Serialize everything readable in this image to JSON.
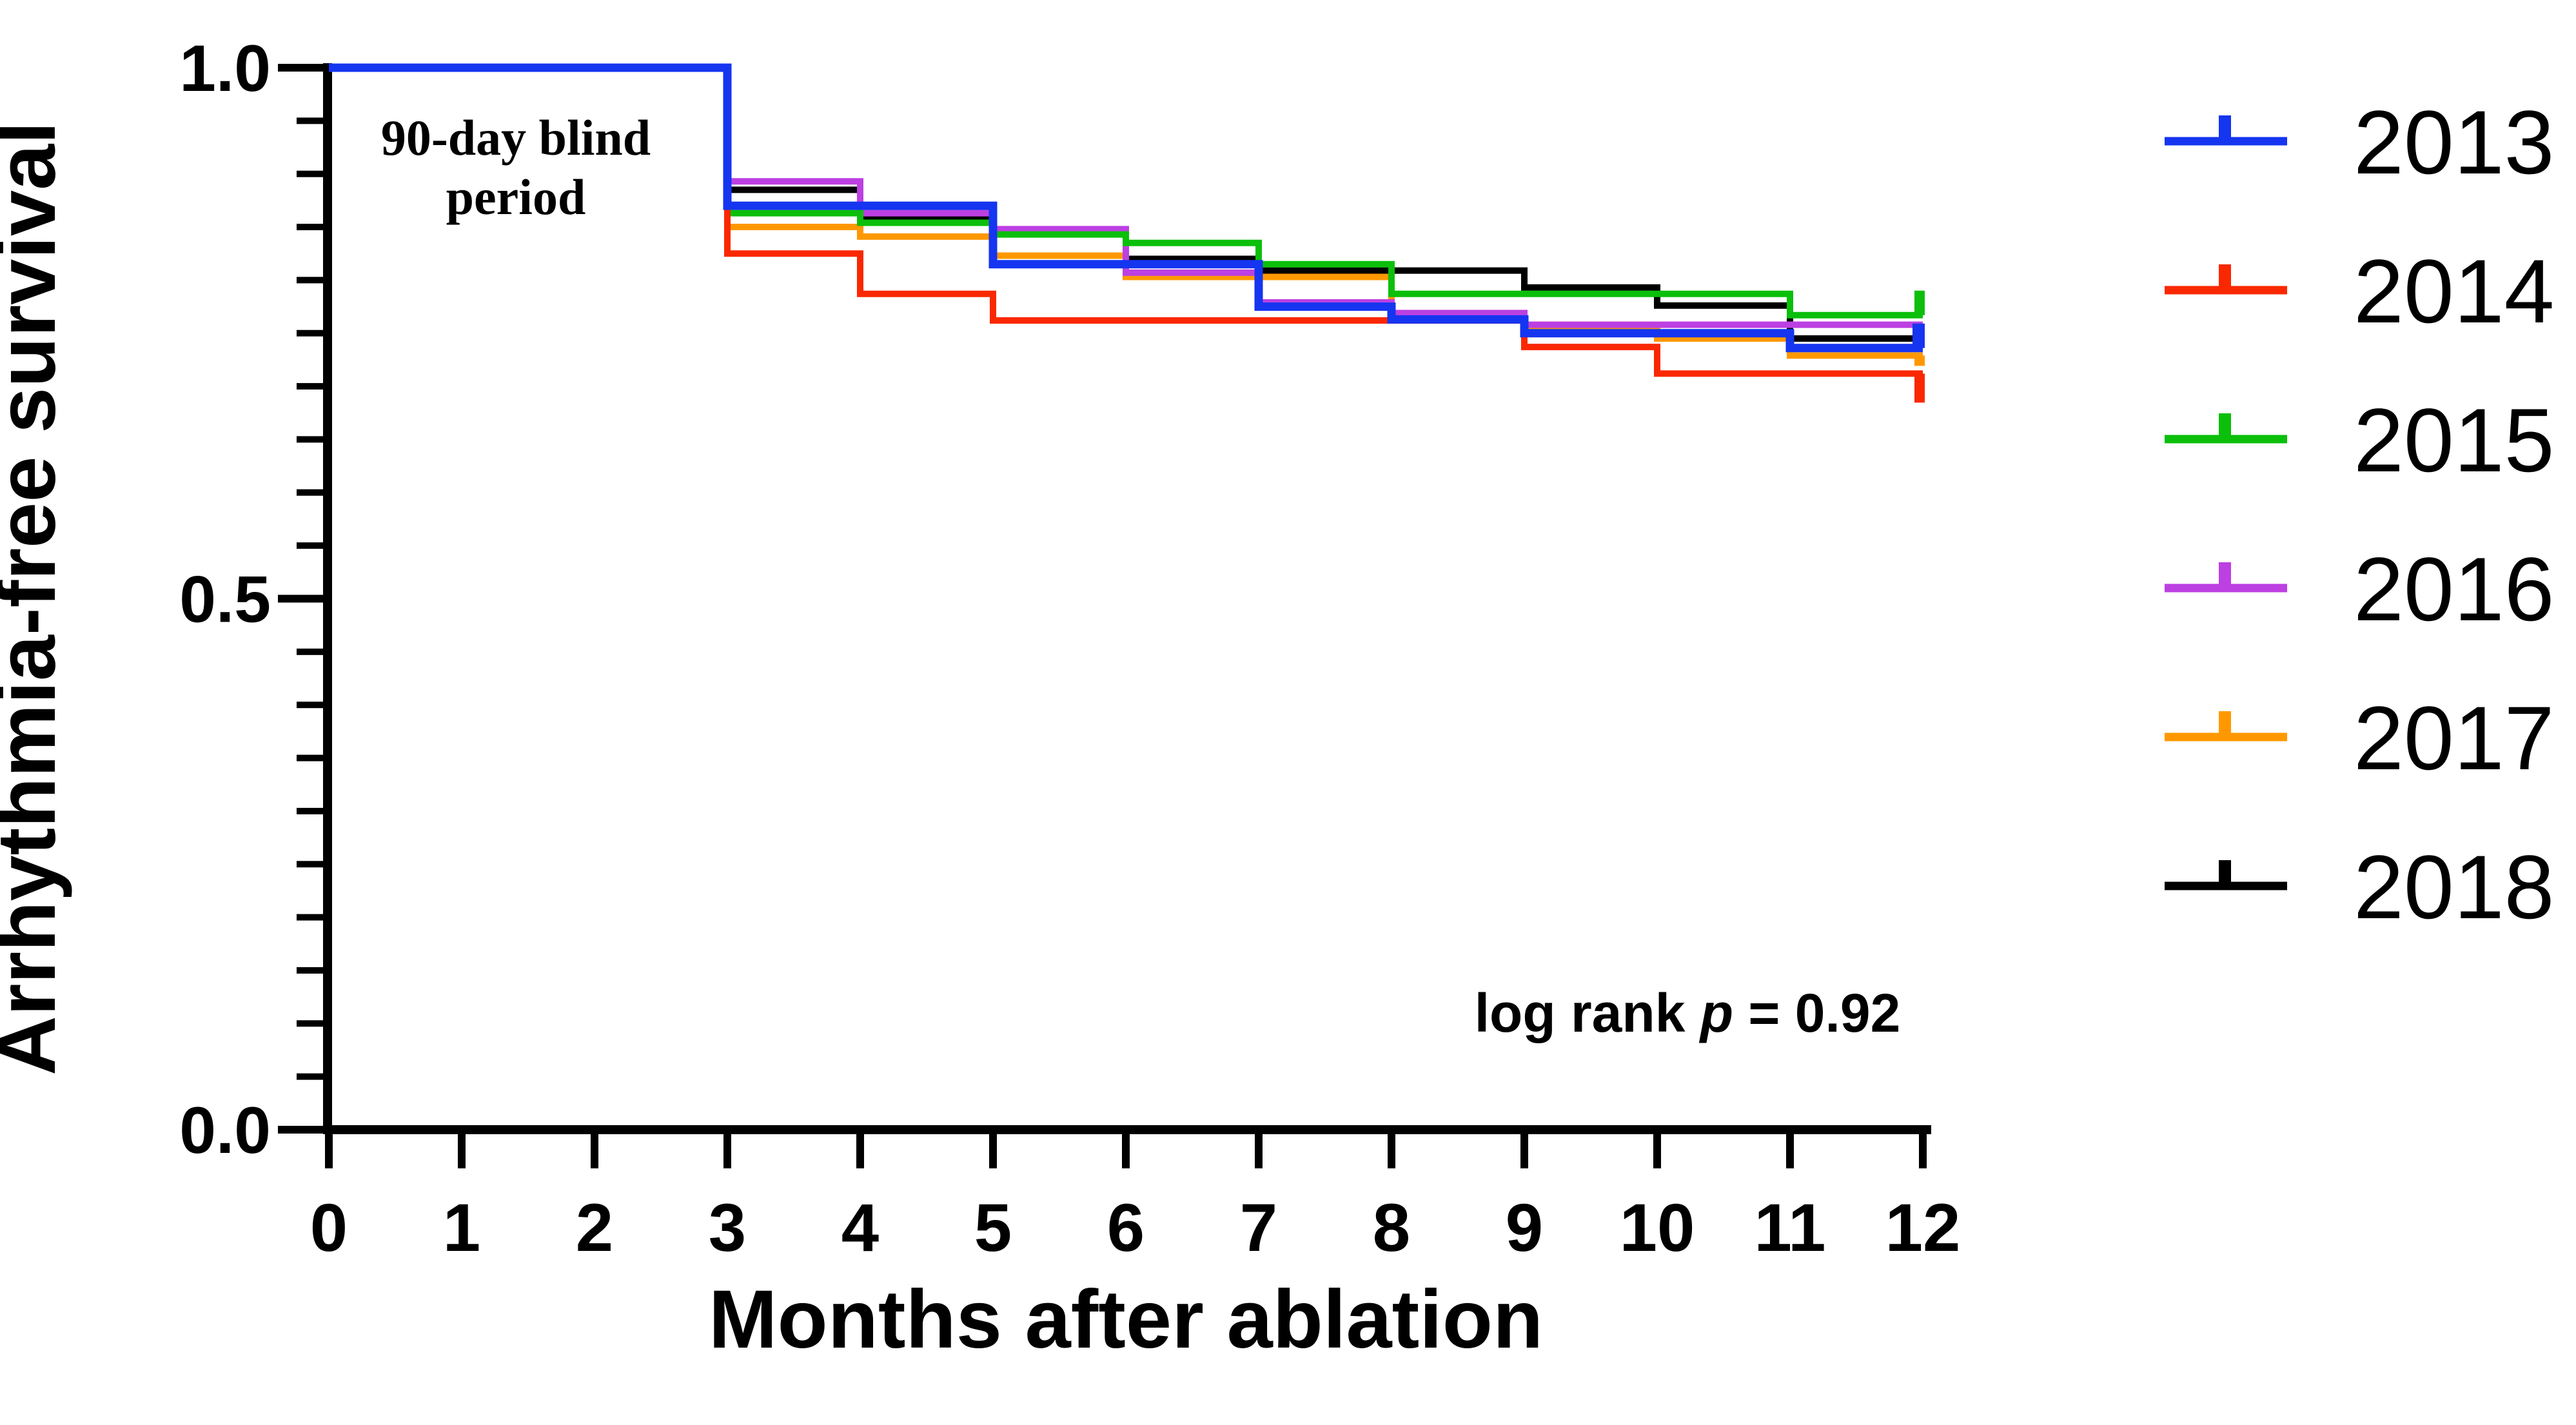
{
  "chart_data": {
    "type": "line",
    "subtype": "kaplan-meier-step",
    "title": "",
    "xlabel": "Months after ablation",
    "ylabel": "Arrhythmia-free survival",
    "xlim": [
      0,
      12
    ],
    "ylim": [
      0.0,
      1.0
    ],
    "grid": false,
    "legend_position": "right-outside",
    "x_tick_labels": [
      "0",
      "1",
      "2",
      "3",
      "4",
      "5",
      "6",
      "7",
      "8",
      "9",
      "10",
      "11",
      "12"
    ],
    "y_ticks": [
      {
        "v": 1.0,
        "label": "1.0"
      },
      {
        "v": 0.5,
        "label": "0.5"
      },
      {
        "v": 0.0,
        "label": "0.0"
      }
    ],
    "y_minor_tick_step": 0.05,
    "step_months": [
      0,
      3,
      4,
      5,
      6,
      7,
      8,
      9,
      10,
      11
    ],
    "x_end": 12,
    "series": [
      {
        "name": "2013",
        "color": "#1535F0",
        "width": 13,
        "values": [
          1.0,
          0.87,
          0.87,
          0.815,
          0.815,
          0.775,
          0.763,
          0.75,
          0.75,
          0.736
        ],
        "end_tick": {
          "dir": "up",
          "len": 38
        }
      },
      {
        "name": "2014",
        "color": "#FA2800",
        "width": 10,
        "values": [
          1.0,
          0.825,
          0.787,
          0.762,
          0.762,
          0.762,
          0.762,
          0.737,
          0.712,
          0.712
        ],
        "end_tick": {
          "dir": "down",
          "len": 45
        }
      },
      {
        "name": "2015",
        "color": "#0BBF0B",
        "width": 10,
        "values": [
          1.0,
          0.863,
          0.854,
          0.843,
          0.835,
          0.815,
          0.787,
          0.787,
          0.787,
          0.767
        ],
        "end_tick": {
          "dir": "up",
          "len": 38
        }
      },
      {
        "name": "2016",
        "color": "#BC40E2",
        "width": 10,
        "values": [
          1.0,
          0.893,
          0.863,
          0.848,
          0.807,
          0.779,
          0.769,
          0.758,
          0.758,
          0.758
        ],
        "end_tick": {
          "dir": "down",
          "len": 20
        }
      },
      {
        "name": "2017",
        "color": "#FF9800",
        "width": 10,
        "values": [
          1.0,
          0.85,
          0.841,
          0.823,
          0.803,
          0.803,
          0.765,
          0.755,
          0.745,
          0.729
        ],
        "end_tick": {
          "dir": "down",
          "len": 16
        }
      },
      {
        "name": "2018",
        "color": "#000000",
        "width": 10,
        "values": [
          1.0,
          0.885,
          0.859,
          0.845,
          0.82,
          0.809,
          0.809,
          0.793,
          0.776,
          0.745
        ],
        "end_tick": {
          "dir": "none",
          "len": 0
        }
      }
    ],
    "draw_order": [
      5,
      4,
      3,
      2,
      1,
      0
    ],
    "annotations": {
      "blind_line1": "90-day blind",
      "blind_line2": "period",
      "logrank_prefix": "log rank ",
      "logrank_p": "p",
      "logrank_suffix": " = 0.92"
    }
  },
  "legend": {
    "items": [
      {
        "label": "2013"
      },
      {
        "label": "2014"
      },
      {
        "label": "2015"
      },
      {
        "label": "2016"
      },
      {
        "label": "2017"
      },
      {
        "label": "2018"
      }
    ]
  }
}
